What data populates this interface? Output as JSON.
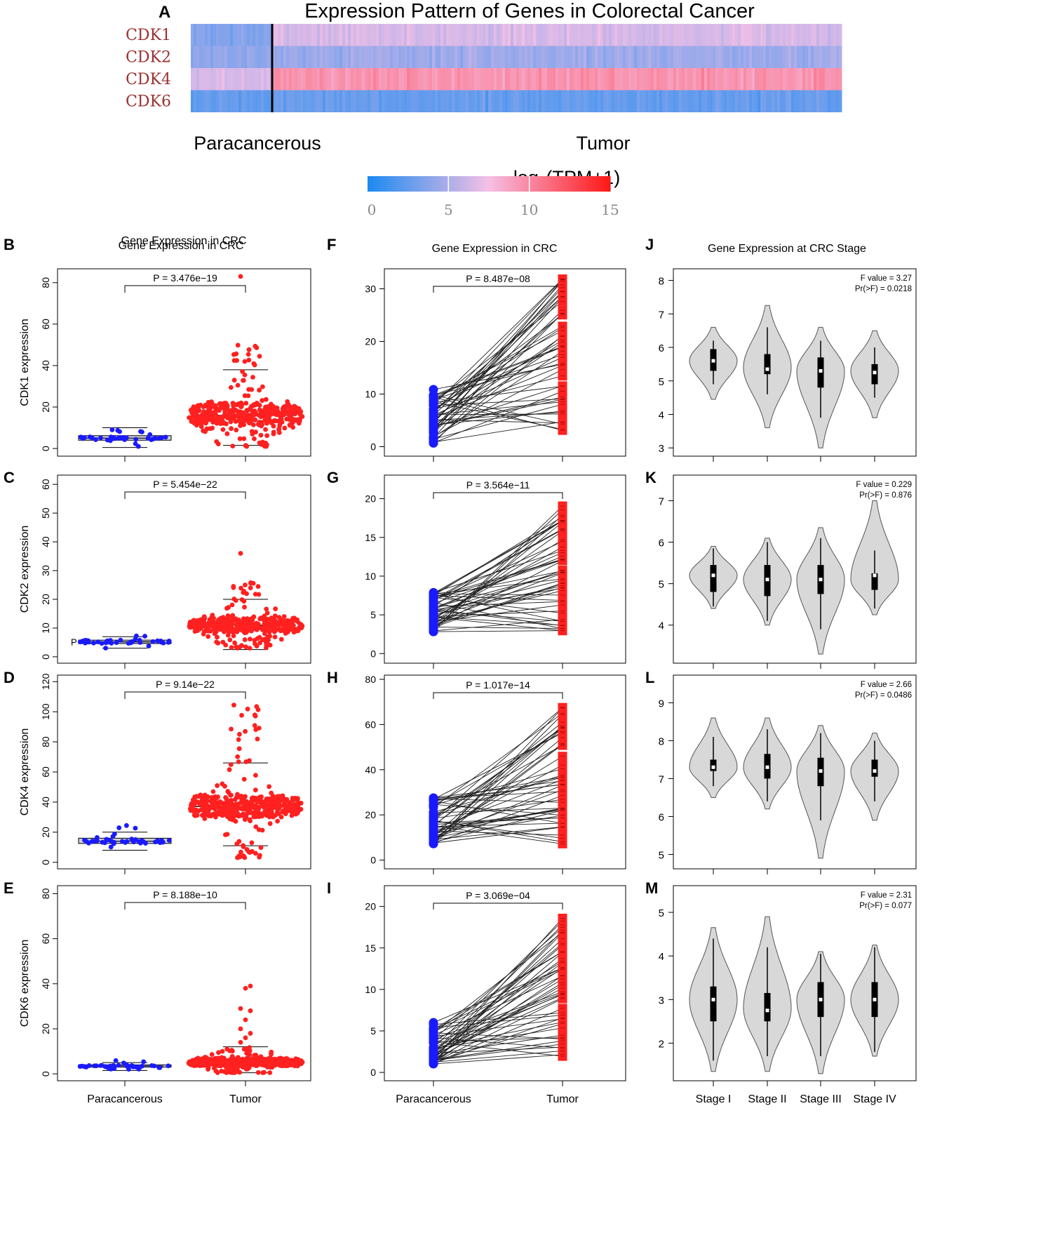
{
  "colors": {
    "low": "#1e8af0",
    "mid": "#f5c0e6",
    "high": "#ff1a1a",
    "paracancerous_points": "#1a1aff",
    "tumor_points": "#ff2020",
    "violin_fill": "#d8d8d8",
    "gene_label": "#9b3030"
  },
  "chart_data": [
    {
      "id": "A",
      "type": "heatmap",
      "panel_label": "A",
      "title": "Expression Pattern of Genes in Colorectal Cancer",
      "rows": [
        "CDK1",
        "CDK2",
        "CDK4",
        "CDK6"
      ],
      "row_mean_paracancerous": [
        3.5,
        4.0,
        6.5,
        2.5
      ],
      "row_mean_tumor": [
        6.5,
        4.5,
        9.5,
        2.5
      ],
      "groups": [
        "Paracancerous",
        "Tumor"
      ],
      "colorbar": {
        "title": "log2(TPM+1)",
        "title_base": "log",
        "title_sub": "2",
        "title_rest": "(TPM+1)",
        "ticks": [
          "0",
          "5",
          "10",
          "15"
        ],
        "range": [
          0,
          15
        ]
      }
    },
    {
      "id": "B",
      "panel_label": "B",
      "type": "scatter",
      "kind": "beeswarm",
      "title": "Gene Expression in CRC",
      "ylabel": "CDK1 expression",
      "ylim": [
        -2,
        85
      ],
      "yticks": [
        0,
        20,
        40,
        60,
        80
      ],
      "pvalue": "P = 3.476e−19",
      "categories": [
        "Paracancerous",
        "Tumor"
      ],
      "groups": [
        {
          "name": "Paracancerous",
          "median": 5,
          "q1": 4,
          "q3": 6.2,
          "whisker_low": 0.5,
          "whisker_high": 10,
          "n": 40,
          "range": [
            1,
            11
          ]
        },
        {
          "name": "Tumor",
          "median": 16,
          "q1": 11,
          "q3": 22,
          "whisker_low": 1.5,
          "whisker_high": 38,
          "n": 420,
          "range": [
            1,
            54
          ],
          "outliers": [
            83
          ]
        }
      ]
    },
    {
      "id": "C",
      "panel_label": "C",
      "type": "scatter",
      "kind": "beeswarm",
      "title": "",
      "ylabel": "CDK2 expression",
      "ylim": [
        -1,
        62
      ],
      "yticks": [
        0,
        10,
        20,
        30,
        40,
        50,
        60
      ],
      "pvalue": "P = 5.454e−22",
      "side_mark": "P",
      "categories": [
        "Paracancerous",
        "Tumor"
      ],
      "groups": [
        {
          "name": "Paracancerous",
          "median": 5.2,
          "q1": 4.6,
          "q3": 5.8,
          "whisker_low": 3,
          "whisker_high": 7,
          "n": 40,
          "range": [
            3,
            8
          ]
        },
        {
          "name": "Tumor",
          "median": 11,
          "q1": 8.5,
          "q3": 13.5,
          "whisker_low": 2.5,
          "whisker_high": 20,
          "n": 420,
          "range": [
            3,
            26
          ],
          "outliers": [
            36
          ]
        }
      ]
    },
    {
      "id": "D",
      "panel_label": "D",
      "type": "scatter",
      "kind": "beeswarm",
      "title": "",
      "ylabel": "CDK4 expression",
      "ylim": [
        -2,
        122
      ],
      "yticks": [
        0,
        20,
        40,
        60,
        80,
        100,
        120
      ],
      "pvalue": "P = 9.14e−22",
      "categories": [
        "Paracancerous",
        "Tumor"
      ],
      "groups": [
        {
          "name": "Paracancerous",
          "median": 14,
          "q1": 12.5,
          "q3": 16,
          "whisker_low": 8,
          "whisker_high": 20,
          "n": 40,
          "range": [
            8,
            27
          ]
        },
        {
          "name": "Tumor",
          "median": 37,
          "q1": 30,
          "q3": 44,
          "whisker_low": 11,
          "whisker_high": 66,
          "n": 420,
          "range": [
            3,
            105
          ]
        }
      ]
    },
    {
      "id": "E",
      "panel_label": "E",
      "type": "scatter",
      "kind": "beeswarm",
      "title": "",
      "ylabel": "CDK6 expression",
      "ylim": [
        -1.5,
        82
      ],
      "yticks": [
        0,
        20,
        40,
        60,
        80
      ],
      "pvalue": "P = 8.188e−10",
      "categories": [
        "Paracancerous",
        "Tumor"
      ],
      "groups": [
        {
          "name": "Paracancerous",
          "median": 3.5,
          "q1": 3,
          "q3": 4,
          "whisker_low": 1.5,
          "whisker_high": 5,
          "n": 40,
          "range": [
            1,
            6.5
          ]
        },
        {
          "name": "Tumor",
          "median": 5,
          "q1": 3.5,
          "q3": 7,
          "whisker_low": 0.5,
          "whisker_high": 12,
          "n": 420,
          "range": [
            0.5,
            12
          ],
          "outliers": [
            14,
            16,
            18,
            20,
            24,
            28,
            29,
            38,
            39
          ]
        }
      ]
    },
    {
      "id": "F",
      "panel_label": "F",
      "type": "line",
      "kind": "paired",
      "title": "Gene Expression in CRC",
      "ylim": [
        -1,
        33
      ],
      "yticks": [
        0,
        10,
        20,
        30
      ],
      "pvalue": "P =  8.487e−08",
      "categories": [
        "Paracancerous",
        "Tumor"
      ],
      "paracancerous_range": [
        0.5,
        11
      ],
      "tumor_range": [
        1.5,
        32
      ],
      "n_pairs": 50
    },
    {
      "id": "G",
      "panel_label": "G",
      "type": "line",
      "kind": "paired",
      "title": "",
      "ylim": [
        -0.7,
        22.5
      ],
      "yticks": [
        0,
        5,
        10,
        15,
        20
      ],
      "pvalue": "P = 3.564e−11",
      "categories": [
        "Paracancerous",
        "Tumor"
      ],
      "paracancerous_range": [
        2.8,
        8.2
      ],
      "tumor_range": [
        2.8,
        20
      ],
      "n_pairs": 50
    },
    {
      "id": "H",
      "panel_label": "H",
      "type": "line",
      "kind": "paired",
      "title": "",
      "ylim": [
        -2,
        80
      ],
      "yticks": [
        0,
        20,
        40,
        60,
        80
      ],
      "pvalue": "P =  1.017e−14",
      "categories": [
        "Paracancerous",
        "Tumor"
      ],
      "paracancerous_range": [
        7,
        28
      ],
      "tumor_range": [
        3,
        69
      ],
      "n_pairs": 50
    },
    {
      "id": "I",
      "panel_label": "I",
      "type": "line",
      "kind": "paired",
      "title": "",
      "ylim": [
        -0.5,
        22
      ],
      "yticks": [
        0,
        5,
        10,
        15,
        20
      ],
      "pvalue": "P = 3.069e−04",
      "categories": [
        "Paracancerous",
        "Tumor"
      ],
      "paracancerous_range": [
        1,
        6.2
      ],
      "tumor_range": [
        1.5,
        18.7
      ],
      "n_pairs": 50
    },
    {
      "id": "J",
      "panel_label": "J",
      "type": "area",
      "kind": "violin",
      "title": "Gene Expression at CRC Stage",
      "ylim": [
        2.9,
        8.2
      ],
      "yticks": [
        3,
        4,
        5,
        6,
        7,
        8
      ],
      "stat1": "F value = 3.27",
      "stat2": "Pr(>F) = 0.0218",
      "categories": [
        "Stage I",
        "Stage II",
        "Stage III",
        "Stage IV"
      ],
      "stages": [
        {
          "min": 4.45,
          "max": 6.6,
          "mode": 5.6,
          "q1": 5.3,
          "med": 5.6,
          "q3": 5.95,
          "wlo": 4.9,
          "whi": 6.2
        },
        {
          "min": 3.6,
          "max": 7.25,
          "mode": 5.4,
          "q1": 5.2,
          "med": 5.35,
          "q3": 5.8,
          "wlo": 4.6,
          "whi": 6.6
        },
        {
          "min": 3.0,
          "max": 6.6,
          "mode": 5.3,
          "q1": 4.8,
          "med": 5.3,
          "q3": 5.7,
          "wlo": 3.9,
          "whi": 6.2
        },
        {
          "min": 3.9,
          "max": 6.5,
          "mode": 5.3,
          "q1": 4.9,
          "med": 5.25,
          "q3": 5.5,
          "wlo": 4.5,
          "whi": 6.0
        }
      ]
    },
    {
      "id": "K",
      "panel_label": "K",
      "type": "area",
      "kind": "violin",
      "title": "",
      "ylim": [
        3.2,
        7.5
      ],
      "yticks": [
        4,
        5,
        6,
        7
      ],
      "stat1": "F value = 0.229",
      "stat2": "Pr(>F) = 0.876",
      "categories": [
        "Stage I",
        "Stage II",
        "Stage III",
        "Stage IV"
      ],
      "stages": [
        {
          "min": 4.4,
          "max": 5.9,
          "mode": 5.2,
          "q1": 4.8,
          "med": 5.2,
          "q3": 5.45,
          "wlo": 4.45,
          "whi": 5.85
        },
        {
          "min": 4.0,
          "max": 6.1,
          "mode": 5.1,
          "q1": 4.7,
          "med": 5.1,
          "q3": 5.45,
          "wlo": 4.1,
          "whi": 6.0
        },
        {
          "min": 3.3,
          "max": 6.35,
          "mode": 5.1,
          "q1": 4.75,
          "med": 5.1,
          "q3": 5.45,
          "wlo": 3.9,
          "whi": 6.1
        },
        {
          "min": 4.25,
          "max": 7.0,
          "mode": 5.1,
          "q1": 4.85,
          "med": 5.2,
          "q3": 5.25,
          "wlo": 4.4,
          "whi": 5.8
        }
      ]
    },
    {
      "id": "L",
      "panel_label": "L",
      "type": "area",
      "kind": "violin",
      "title": "",
      "ylim": [
        4.75,
        9.6
      ],
      "yticks": [
        5,
        6,
        7,
        8,
        9
      ],
      "stat1": "F value = 2.66",
      "stat2": "Pr(>F) = 0.0486",
      "categories": [
        "Stage I",
        "Stage II",
        "Stage III",
        "Stage IV"
      ],
      "stages": [
        {
          "min": 6.5,
          "max": 8.6,
          "mode": 7.3,
          "q1": 7.2,
          "med": 7.3,
          "q3": 7.5,
          "wlo": 6.8,
          "whi": 8.1
        },
        {
          "min": 6.2,
          "max": 8.6,
          "mode": 7.3,
          "q1": 7.0,
          "med": 7.3,
          "q3": 7.65,
          "wlo": 6.4,
          "whi": 8.3
        },
        {
          "min": 4.9,
          "max": 8.4,
          "mode": 7.2,
          "q1": 6.8,
          "med": 7.2,
          "q3": 7.55,
          "wlo": 5.9,
          "whi": 8.2
        },
        {
          "min": 5.9,
          "max": 8.2,
          "mode": 7.2,
          "q1": 7.05,
          "med": 7.2,
          "q3": 7.5,
          "wlo": 6.4,
          "whi": 8.0
        }
      ]
    },
    {
      "id": "M",
      "panel_label": "M",
      "type": "area",
      "kind": "violin",
      "title": "",
      "ylim": [
        1.25,
        5.5
      ],
      "yticks": [
        2,
        3,
        4,
        5
      ],
      "stat1": "F value = 2.31",
      "stat2": "Pr(>F) = 0.077",
      "categories": [
        "Stage I",
        "Stage II",
        "Stage III",
        "Stage IV"
      ],
      "xlabels_shown": true,
      "stages": [
        {
          "min": 1.35,
          "max": 4.65,
          "mode": 3.0,
          "q1": 2.5,
          "med": 3.0,
          "q3": 3.3,
          "wlo": 1.6,
          "whi": 4.4
        },
        {
          "min": 1.35,
          "max": 4.9,
          "mode": 2.8,
          "q1": 2.5,
          "med": 2.75,
          "q3": 3.15,
          "wlo": 1.7,
          "whi": 4.2
        },
        {
          "min": 1.3,
          "max": 4.1,
          "mode": 3.0,
          "q1": 2.6,
          "med": 3.0,
          "q3": 3.4,
          "wlo": 1.7,
          "whi": 4.05
        },
        {
          "min": 1.7,
          "max": 4.25,
          "mode": 3.0,
          "q1": 2.6,
          "med": 3.0,
          "q3": 3.4,
          "wlo": 1.8,
          "whi": 4.2
        }
      ]
    }
  ]
}
